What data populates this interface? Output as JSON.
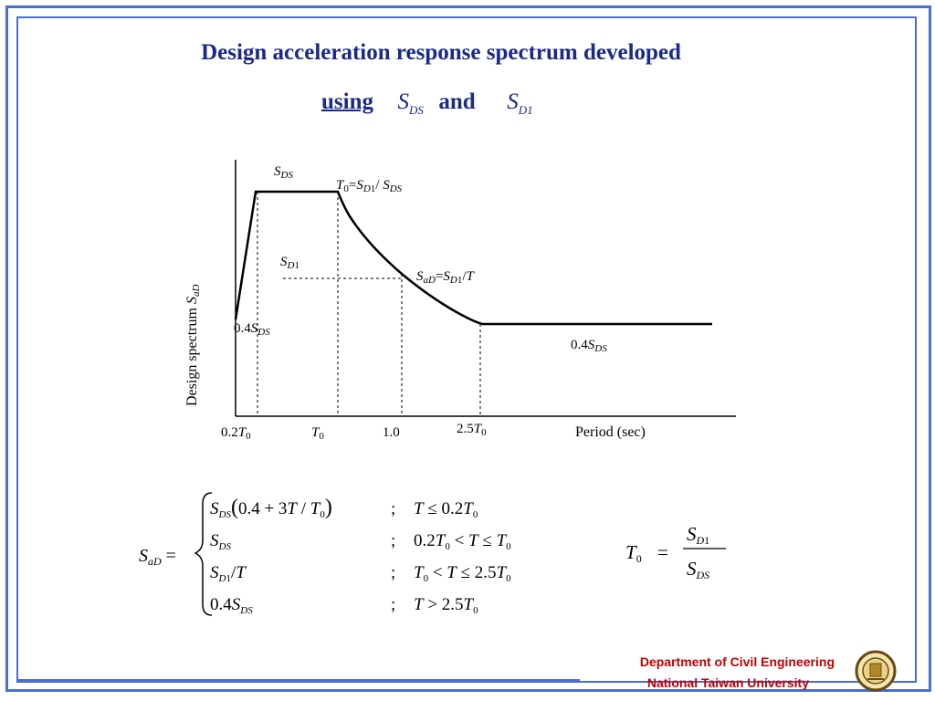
{
  "title": {
    "line1": "Design acceleration response spectrum developed",
    "using": "using",
    "s": "S",
    "ds_sub": "DS",
    "and": "and",
    "d1_sub": "D1"
  },
  "chart": {
    "y_label": "Design spectrum S",
    "y_label_sub": "aD",
    "x_label": "Period (sec)",
    "x_ticks": [
      "0.2T0",
      "T0",
      "1.0",
      "2.5T0"
    ],
    "labels": {
      "sds": "SDS",
      "t0_def": "T0=SD1/ SDS",
      "sd1": "SD1",
      "sad": "SaD=SD1/T",
      "left_04": "0.4SDS",
      "right_04": "0.4SDS"
    }
  },
  "formula": {
    "lhs": "SaD =",
    "cases": [
      {
        "expr": "SDS(0.4 + 3T / T0)",
        "cond": "T ≤ 0.2T0"
      },
      {
        "expr": "SDS",
        "cond": "0.2T0 < T ≤ T0"
      },
      {
        "expr": "SD1/T",
        "cond": "T0 < T ≤ 2.5T0"
      },
      {
        "expr": "0.4SDS",
        "cond": "T > 2.5T0"
      }
    ],
    "t0": "T0 = SD1 / SDS"
  },
  "footer": {
    "dept": "Department of Civil Engineering",
    "univ": "National Taiwan University"
  },
  "colors": {
    "frame": "#4a6fd0",
    "title": "#1a2a8a",
    "footer": "#c00000"
  },
  "icons": {
    "seal": "university-seal-icon"
  }
}
